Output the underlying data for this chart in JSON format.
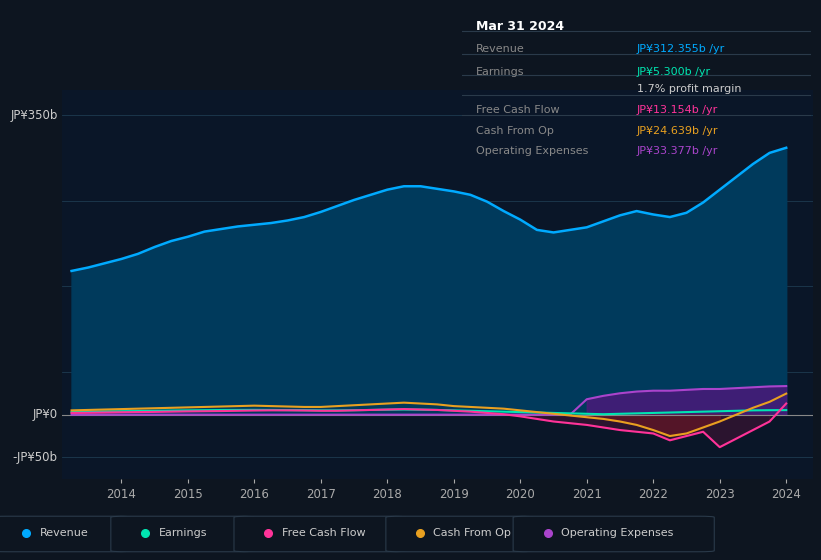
{
  "bg_color": "#0d1520",
  "plot_bg_color": "#0a1628",
  "grid_color": "#1e3a50",
  "years": [
    2013.25,
    2013.5,
    2013.75,
    2014.0,
    2014.25,
    2014.5,
    2014.75,
    2015.0,
    2015.25,
    2015.5,
    2015.75,
    2016.0,
    2016.25,
    2016.5,
    2016.75,
    2017.0,
    2017.25,
    2017.5,
    2017.75,
    2018.0,
    2018.25,
    2018.5,
    2018.75,
    2019.0,
    2019.25,
    2019.5,
    2019.75,
    2020.0,
    2020.25,
    2020.5,
    2020.75,
    2021.0,
    2021.25,
    2021.5,
    2021.75,
    2022.0,
    2022.25,
    2022.5,
    2022.75,
    2023.0,
    2023.25,
    2023.5,
    2023.75,
    2024.0
  ],
  "revenue": [
    168,
    172,
    177,
    182,
    188,
    196,
    203,
    208,
    214,
    217,
    220,
    222,
    224,
    227,
    231,
    237,
    244,
    251,
    257,
    263,
    267,
    267,
    264,
    261,
    257,
    249,
    238,
    228,
    216,
    213,
    216,
    219,
    226,
    233,
    238,
    234,
    231,
    236,
    248,
    263,
    278,
    293,
    306,
    312
  ],
  "earnings": [
    3,
    3.5,
    3.8,
    4,
    4.2,
    4.5,
    4.8,
    5,
    5.2,
    5.4,
    5.5,
    5.6,
    5.5,
    5.3,
    5.2,
    5.0,
    5.0,
    5.2,
    5.5,
    5.8,
    6.0,
    5.8,
    5.5,
    5.0,
    4.5,
    4.0,
    3.5,
    3.0,
    2.5,
    2.0,
    1.5,
    1.0,
    0.5,
    1.0,
    1.5,
    2.0,
    2.5,
    3.0,
    3.5,
    4.0,
    4.5,
    5.0,
    5.2,
    5.3
  ],
  "free_cash_flow": [
    2,
    2.2,
    2.5,
    2.8,
    3.0,
    3.2,
    3.5,
    3.8,
    4.0,
    4.2,
    4.5,
    4.8,
    5.0,
    5.0,
    4.8,
    4.5,
    4.5,
    5.0,
    5.5,
    6.0,
    6.5,
    6.0,
    5.5,
    4.5,
    3.5,
    2.0,
    0.5,
    -2.0,
    -5.0,
    -8.0,
    -10.0,
    -12.0,
    -15.0,
    -18.0,
    -20.0,
    -22.0,
    -30.0,
    -25.0,
    -20.0,
    -38.0,
    -28.0,
    -18.0,
    -8.0,
    13.0
  ],
  "cash_from_op": [
    5,
    5.5,
    6,
    6.5,
    7,
    7.5,
    8,
    8.5,
    9,
    9.5,
    10,
    10.5,
    10,
    9.5,
    9,
    9,
    10,
    11,
    12,
    13,
    14,
    13,
    12,
    10,
    9,
    8,
    7,
    5,
    3,
    1,
    -1,
    -3,
    -5,
    -8,
    -12,
    -18,
    -25,
    -22,
    -15,
    -8,
    0,
    8,
    15,
    24.6
  ],
  "operating_expenses": [
    0,
    0,
    0,
    0,
    0,
    0,
    0,
    0,
    0,
    0,
    0,
    0,
    0,
    0,
    0,
    0,
    0,
    0,
    0,
    0,
    0,
    0,
    0,
    0,
    0,
    0,
    0,
    0,
    0,
    0,
    0,
    18,
    22,
    25,
    27,
    28,
    28,
    29,
    30,
    30,
    31,
    32,
    33,
    33.4
  ],
  "revenue_color": "#00aaff",
  "revenue_fill_color": "#003a5c",
  "earnings_color": "#00e5b0",
  "free_cash_flow_color": "#ff3399",
  "cash_from_op_color": "#e8a020",
  "operating_expenses_color": "#aa44cc",
  "operating_expenses_fill_color": "#4a1a7a",
  "ylabel_350": "JP¥350b",
  "ylabel_0": "JP¥0",
  "ylabel_neg50": "-JP¥50b",
  "ylim": [
    -75,
    380
  ],
  "xlim": [
    2013.1,
    2024.4
  ],
  "info_title": "Mar 31 2024",
  "info_revenue_label": "Revenue",
  "info_revenue_value": "JP¥312.355b /yr",
  "info_earnings_label": "Earnings",
  "info_earnings_value": "JP¥5.300b /yr",
  "info_margin": "1.7% profit margin",
  "info_fcf_label": "Free Cash Flow",
  "info_fcf_value": "JP¥13.154b /yr",
  "info_cashop_label": "Cash From Op",
  "info_cashop_value": "JP¥24.639b /yr",
  "info_opex_label": "Operating Expenses",
  "info_opex_value": "JP¥33.377b /yr",
  "legend_labels": [
    "Revenue",
    "Earnings",
    "Free Cash Flow",
    "Cash From Op",
    "Operating Expenses"
  ],
  "legend_colors": [
    "#00aaff",
    "#00e5b0",
    "#ff3399",
    "#e8a020",
    "#aa44cc"
  ]
}
